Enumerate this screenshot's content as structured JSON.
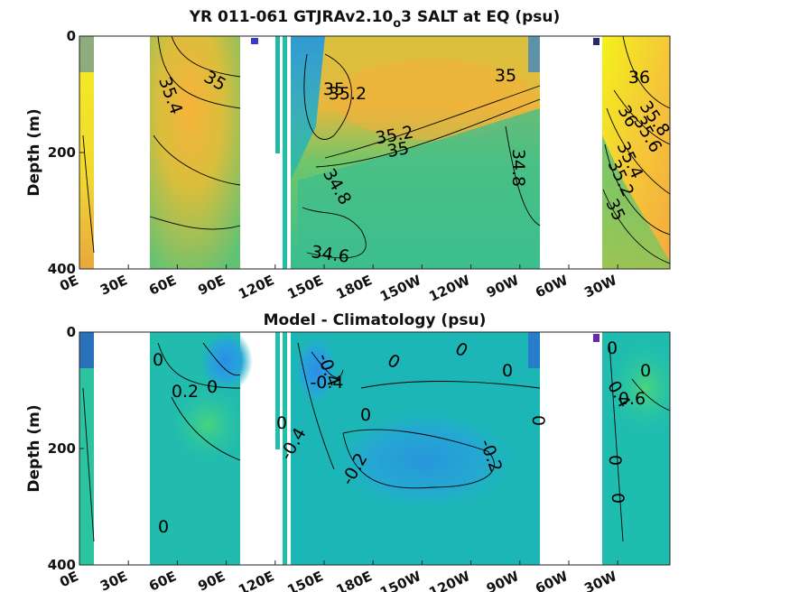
{
  "chart_data": [
    {
      "type": "heatmap",
      "title": "YR 011-061 GTJRAv2.10",
      "title_sub": "o",
      "title_tail": "3 SALT at EQ (psu)",
      "ylabel": "Depth (m)",
      "ylim": [
        0,
        400
      ],
      "yticks": [
        "0",
        "200",
        "400"
      ],
      "xticks": [
        "0E",
        "30E",
        "60E",
        "90E",
        "120E",
        "150E",
        "180E",
        "150W",
        "120W",
        "90W",
        "60W",
        "30W"
      ],
      "colors": {
        "high": "#f2f01e",
        "mid": "#f6b43c",
        "low": "#23b4a8",
        "fresh": "#1f9be0",
        "freshest": "#2a3bc0"
      },
      "contour_labels": [
        "35",
        "35.4",
        "35",
        "35.2",
        "35",
        "35.2",
        "35",
        "34.8",
        "34.8",
        "34.6",
        "36",
        "36",
        "35.8",
        "35.6",
        "35.4",
        "35.2",
        "35"
      ]
    },
    {
      "type": "heatmap",
      "title": "Model - Climatology (psu)",
      "ylabel": "Depth (m)",
      "ylim": [
        0,
        400
      ],
      "yticks": [
        "0",
        "200",
        "400"
      ],
      "xticks": [
        "0E",
        "30E",
        "60E",
        "90E",
        "120E",
        "150E",
        "180E",
        "150W",
        "120W",
        "90W",
        "60W",
        "30W"
      ],
      "colors": {
        "zero": "#1ab8b0",
        "neg": "#2aa0e0",
        "pos": "#3ccf8a",
        "strong_neg": "#2a3bc0"
      },
      "contour_labels": [
        "0",
        "0.2",
        "0",
        "0",
        "-0.4",
        "-0.4",
        "0",
        "0",
        "0",
        "0",
        "0",
        "-0.4",
        "-0.2",
        "-0.2",
        "0",
        "0",
        "0",
        "0.4",
        "0.6",
        "0",
        "0"
      ]
    }
  ]
}
